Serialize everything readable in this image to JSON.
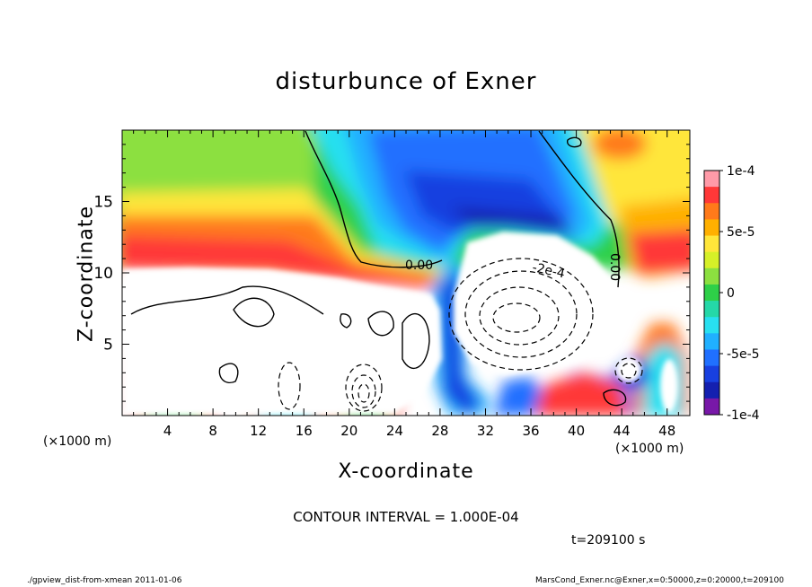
{
  "chart_data": {
    "type": "heatmap",
    "title": "disturbunce of Exner",
    "xlabel": "X-coordinate",
    "ylabel": "Z-coordinate",
    "x_unit": "(×1000 m)",
    "y_unit": "(×1000 m)",
    "x_ticks": [
      "4",
      "8",
      "12",
      "16",
      "20",
      "24",
      "28",
      "32",
      "36",
      "40",
      "44",
      "48"
    ],
    "y_ticks": [
      "5",
      "10",
      "15"
    ],
    "xlim": [
      0,
      50
    ],
    "ylim": [
      0,
      20
    ],
    "colorbar": {
      "labels": [
        "1e-4",
        "5e-5",
        "0",
        "-5e-5",
        "-1e-4"
      ],
      "range": [
        -0.0001,
        0.0001
      ],
      "colors": [
        "#ff9aa8",
        "#ff3838",
        "#ff7a1a",
        "#ffb000",
        "#ffe63a",
        "#d6f028",
        "#8ce040",
        "#2ed048",
        "#25d8a8",
        "#28e0f0",
        "#20b0ff",
        "#2070ff",
        "#1840e0",
        "#1420b0",
        "#7818a8"
      ]
    },
    "contour_labels": [
      "0.00",
      "-2e-4",
      "0.00"
    ],
    "contour_interval_text": "CONTOUR INTERVAL = 1.000E-04",
    "time_text": "t=209100 s"
  },
  "footer": {
    "left": "./gpview_dist-from-xmean  2011-01-06",
    "right": "MarsCond_Exner.nc@Exner,x=0:50000,z=0:20000,t=209100"
  }
}
